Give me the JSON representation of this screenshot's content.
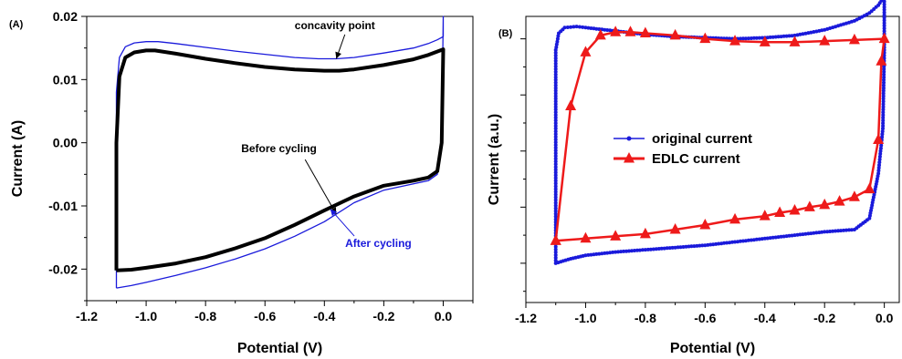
{
  "chart_data": [
    {
      "type": "line",
      "panel_label": "(A)",
      "xlabel": "Potential (V)",
      "ylabel": "Current (A)",
      "xlim": [
        -1.2,
        0.1
      ],
      "ylim": [
        -0.025,
        0.02
      ],
      "xticks": [
        -1.2,
        -1.0,
        -0.8,
        -0.6,
        -0.4,
        -0.2,
        0.0
      ],
      "xtick_labels": [
        "-1.2",
        "-1.0",
        "-0.8",
        "-0.6",
        "-0.4",
        "-0.2",
        "0.0"
      ],
      "yticks": [
        -0.02,
        -0.01,
        0.0,
        0.01,
        0.02
      ],
      "ytick_labels": [
        "-0.02",
        "-0.01",
        "0.00",
        "0.01",
        "0.02"
      ],
      "grid": false,
      "series": [
        {
          "color": "#1a1adb",
          "x": [
            -1.1,
            -1.1,
            -1.1,
            -1.09,
            -1.07,
            -1.04,
            -1.0,
            -0.96,
            -0.9,
            -0.8,
            -0.7,
            -0.6,
            -0.5,
            -0.42,
            -0.36,
            -0.3,
            -0.2,
            -0.1,
            -0.05,
            -0.02,
            0.0,
            0.0,
            -0.005,
            -0.02,
            -0.05,
            -0.1,
            -0.2,
            -0.3,
            -0.4,
            -0.5,
            -0.6,
            -0.7,
            -0.8,
            -0.9,
            -1.0,
            -1.05,
            -1.1
          ],
          "y": [
            -0.023,
            -0.005,
            0.008,
            0.0135,
            0.0152,
            0.0158,
            0.016,
            0.016,
            0.0157,
            0.0151,
            0.0145,
            0.014,
            0.0135,
            0.0133,
            0.0133,
            0.0135,
            0.0142,
            0.015,
            0.0157,
            0.0163,
            0.0168,
            0.02,
            0.0,
            -0.005,
            -0.006,
            -0.0065,
            -0.0075,
            -0.0095,
            -0.0125,
            -0.0148,
            -0.0168,
            -0.0184,
            -0.0198,
            -0.021,
            -0.0221,
            -0.0226,
            -0.023
          ]
        },
        {
          "color": "#000000",
          "x": [
            -1.1,
            -1.1,
            -1.09,
            -1.07,
            -1.04,
            -1.0,
            -0.97,
            -0.9,
            -0.8,
            -0.7,
            -0.6,
            -0.5,
            -0.4,
            -0.35,
            -0.3,
            -0.2,
            -0.1,
            -0.05,
            -0.01,
            0.0,
            -0.005,
            -0.02,
            -0.05,
            -0.1,
            -0.2,
            -0.3,
            -0.4,
            -0.5,
            -0.6,
            -0.7,
            -0.8,
            -0.9,
            -1.0,
            -1.05,
            -1.1
          ],
          "y": [
            -0.0202,
            0.0,
            0.0105,
            0.0135,
            0.0143,
            0.0146,
            0.0146,
            0.0141,
            0.0133,
            0.0126,
            0.012,
            0.0116,
            0.0114,
            0.0114,
            0.0116,
            0.0123,
            0.0132,
            0.0139,
            0.0146,
            0.0148,
            0.0,
            -0.0045,
            -0.0055,
            -0.006,
            -0.0068,
            -0.0085,
            -0.0107,
            -0.013,
            -0.0151,
            -0.0167,
            -0.0181,
            -0.0191,
            -0.0198,
            -0.0201,
            -0.0202
          ]
        }
      ],
      "annotations": [
        {
          "text": "concavity point",
          "color": "#000000",
          "arrow_x": -0.36,
          "arrow_y": 0.0133,
          "text_x": -0.5,
          "text_y": 0.018
        },
        {
          "text": "Before cycling",
          "color": "#000000",
          "arrow_x": -0.36,
          "arrow_y": -0.0113,
          "text_x": -0.68,
          "text_y": -0.0015
        },
        {
          "text": "After cycling",
          "color": "#1a1adb",
          "arrow_x": -0.38,
          "arrow_y": -0.0105,
          "text_x": -0.33,
          "text_y": -0.0165
        }
      ]
    },
    {
      "type": "line",
      "panel_label": "(B)",
      "xlabel": "Potential (V)",
      "ylabel": "Current (a.u.)",
      "xlim": [
        -1.2,
        0.05
      ],
      "xticks": [
        -1.2,
        -1.0,
        -0.8,
        -0.6,
        -0.4,
        -0.2,
        0.0
      ],
      "xtick_labels": [
        "-1.2",
        "-1.0",
        "-0.8",
        "-0.6",
        "-0.4",
        "-0.2",
        "0.0"
      ],
      "ylim": [
        -1.35,
        1.2
      ],
      "yticks": [
        -1.0,
        -0.5,
        0.0,
        0.5,
        1.0
      ],
      "ytick_labels": [
        "",
        "",
        "",
        "",
        ""
      ],
      "grid": false,
      "legend": {
        "position": "center"
      },
      "series": [
        {
          "name": "original current",
          "color": "#1a1adb",
          "marker": "circle",
          "x": [
            -1.1,
            -1.1,
            -1.1,
            -1.09,
            -1.07,
            -1.03,
            -1.0,
            -0.9,
            -0.8,
            -0.7,
            -0.6,
            -0.5,
            -0.4,
            -0.3,
            -0.2,
            -0.1,
            -0.05,
            -0.02,
            0.0,
            0.0,
            -0.005,
            -0.02,
            -0.05,
            -0.1,
            -0.2,
            -0.3,
            -0.4,
            -0.5,
            -0.6,
            -0.7,
            -0.8,
            -0.9,
            -1.0,
            -1.05,
            -1.1
          ],
          "y": [
            -1.0,
            0.2,
            0.9,
            1.05,
            1.1,
            1.11,
            1.1,
            1.07,
            1.04,
            1.02,
            1.01,
            1.0,
            1.01,
            1.03,
            1.08,
            1.16,
            1.23,
            1.3,
            1.38,
            0.9,
            0.2,
            -0.2,
            -0.6,
            -0.7,
            -0.72,
            -0.75,
            -0.78,
            -0.81,
            -0.84,
            -0.86,
            -0.88,
            -0.9,
            -0.93,
            -0.96,
            -1.0
          ]
        },
        {
          "name": "EDLC current",
          "color": "#ee1a1a",
          "marker": "triangle",
          "x": [
            -1.1,
            -1.05,
            -1.0,
            -0.95,
            -0.9,
            -0.85,
            -0.8,
            -0.7,
            -0.6,
            -0.5,
            -0.4,
            -0.3,
            -0.2,
            -0.1,
            0.0,
            -0.01,
            -0.02,
            -0.05,
            -0.1,
            -0.15,
            -0.2,
            -0.25,
            -0.3,
            -0.35,
            -0.4,
            -0.5,
            -0.6,
            -0.7,
            -0.8,
            -0.9,
            -1.0,
            -1.1
          ],
          "y": [
            -0.8,
            0.4,
            0.88,
            1.03,
            1.06,
            1.06,
            1.05,
            1.03,
            1.0,
            0.98,
            0.97,
            0.97,
            0.98,
            0.99,
            1.0,
            0.8,
            0.1,
            -0.34,
            -0.41,
            -0.45,
            -0.48,
            -0.5,
            -0.53,
            -0.55,
            -0.58,
            -0.61,
            -0.66,
            -0.7,
            -0.74,
            -0.76,
            -0.78,
            -0.8
          ]
        }
      ]
    }
  ]
}
